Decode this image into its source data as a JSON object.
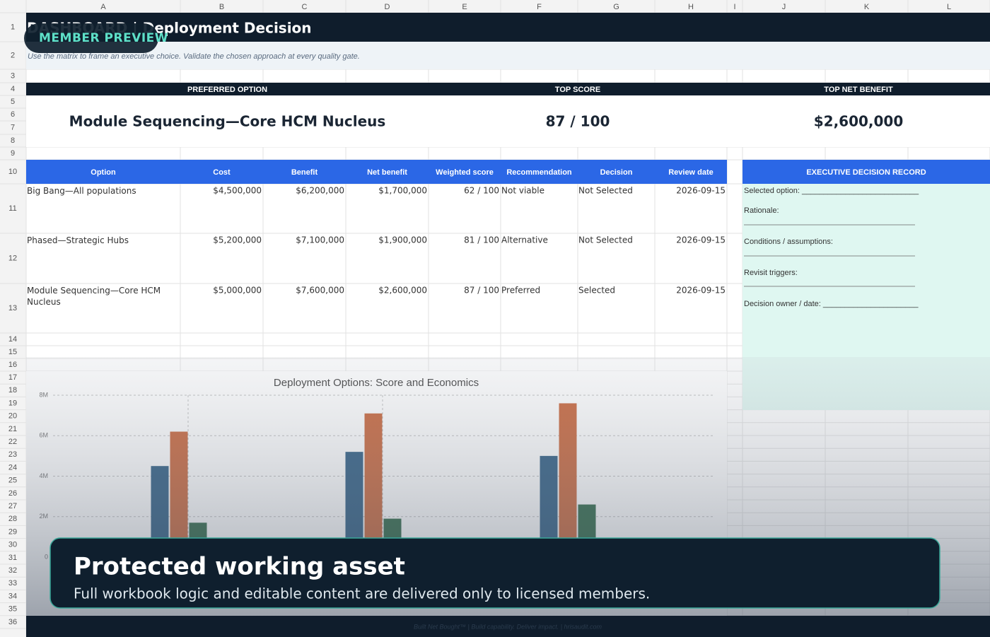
{
  "column_letters": [
    "A",
    "B",
    "C",
    "D",
    "E",
    "F",
    "G",
    "H",
    "I",
    "J",
    "K",
    "L"
  ],
  "row_numbers": [
    1,
    2,
    3,
    4,
    5,
    6,
    7,
    8,
    9,
    10,
    11,
    12,
    13,
    14,
    15,
    16,
    17,
    18,
    19,
    20,
    21,
    22,
    23,
    24,
    25,
    26,
    27,
    28,
    29,
    30,
    31,
    32,
    33,
    34,
    35,
    36
  ],
  "header": {
    "title": "DASHBOARD | Deployment Decision",
    "badge": "MEMBER PREVIEW",
    "subtitle": "Use the matrix to frame an executive choice. Validate the chosen approach at every quality gate."
  },
  "kpis": [
    {
      "label": "PREFERRED OPTION",
      "value": "Module Sequencing—Core HCM Nucleus"
    },
    {
      "label": "TOP SCORE",
      "value": "87 / 100"
    },
    {
      "label": "TOP NET BENEFIT",
      "value": "$2,600,000"
    }
  ],
  "table": {
    "columns": [
      "Option",
      "Cost",
      "Benefit",
      "Net benefit",
      "Weighted score",
      "Recommendation",
      "Decision",
      "Review date"
    ],
    "rows": [
      [
        "Big Bang—All populations",
        "$4,500,000",
        "$6,200,000",
        "$1,700,000",
        "62 / 100",
        "Not viable",
        "Not Selected",
        "2026-09-15"
      ],
      [
        "Phased—Strategic Hubs",
        "$5,200,000",
        "$7,100,000",
        "$1,900,000",
        "81 / 100",
        "Alternative",
        "Not Selected",
        "2026-09-15"
      ],
      [
        "Module Sequencing—Core HCM Nucleus",
        "$5,000,000",
        "$7,600,000",
        "$2,600,000",
        "87 / 100",
        "Preferred",
        "Selected",
        "2026-09-15"
      ]
    ]
  },
  "decision_record": {
    "title": "EXECUTIVE DECISION RECORD",
    "lines": [
      "Selected option: ___________________________",
      "Rationale:",
      "Conditions / assumptions:",
      "Revisit triggers:",
      "Decision owner / date: ______________________"
    ]
  },
  "chart_data": {
    "type": "bar",
    "title": "Deployment Options: Score and Economics",
    "categories": [
      null,
      null,
      null
    ],
    "series": [
      {
        "color": "#1c4f78",
        "values": [
          4500000,
          5200000,
          5000000
        ]
      },
      {
        "color": "#c55a2b",
        "values": [
          6200000,
          7100000,
          7600000
        ]
      },
      {
        "color": "#1b5a36",
        "values": [
          1700000,
          1900000,
          2600000
        ]
      }
    ],
    "ylim": [
      0,
      8000000
    ],
    "yticks": [
      0,
      {
        "value": 2000000,
        "label": "2M"
      },
      {
        "value": 4000000,
        "label": "4M"
      },
      {
        "value": 6000000,
        "label": "6M"
      },
      {
        "value": 8000000,
        "label": "8M"
      }
    ],
    "grid": true
  },
  "overlay": {
    "title": "Protected working asset",
    "text": "Full workbook logic and editable content are delivered only to licensed members."
  },
  "footer": "Built Net Bought™ | Build capability. Deliver impact. | hrisaudit.com"
}
